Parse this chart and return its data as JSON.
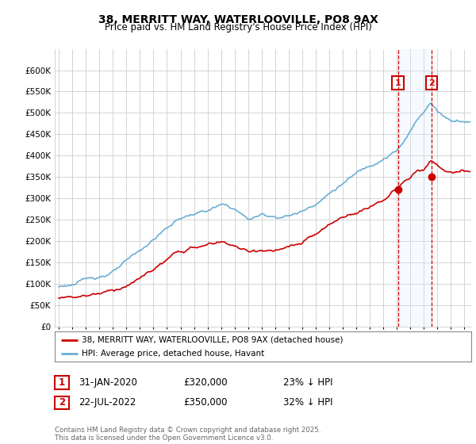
{
  "title": "38, MERRITT WAY, WATERLOOVILLE, PO8 9AX",
  "subtitle": "Price paid vs. HM Land Registry's House Price Index (HPI)",
  "legend_line1": "38, MERRITT WAY, WATERLOOVILLE, PO8 9AX (detached house)",
  "legend_line2": "HPI: Average price, detached house, Havant",
  "footer": "Contains HM Land Registry data © Crown copyright and database right 2025.\nThis data is licensed under the Open Government Licence v3.0.",
  "marker1_date": "31-JAN-2020",
  "marker1_price": "£320,000",
  "marker1_hpi": "23% ↓ HPI",
  "marker2_date": "22-JUL-2022",
  "marker2_price": "£350,000",
  "marker2_hpi": "32% ↓ HPI",
  "hpi_color": "#6baed6",
  "price_color": "#cc0000",
  "marker_color": "#cc0000",
  "background_color": "#ffffff",
  "grid_color": "#cccccc",
  "shade_color": "#ddeeff",
  "ylim": [
    0,
    650000
  ],
  "yticks": [
    0,
    50000,
    100000,
    150000,
    200000,
    250000,
    300000,
    350000,
    400000,
    450000,
    500000,
    550000,
    600000
  ],
  "xlim_start": 1994.7,
  "xlim_end": 2025.5,
  "marker1_x": 2020.08,
  "marker2_x": 2022.55
}
